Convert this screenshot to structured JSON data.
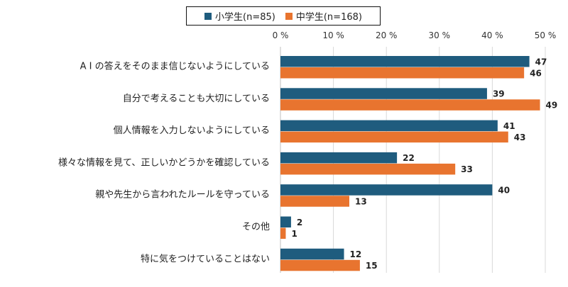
{
  "chart_data": {
    "type": "bar",
    "orientation": "horizontal",
    "categories": [
      "A I の答えをそのまま信じないようにしている",
      "自分で考えることも大切にしている",
      "個人情報を入力しないようにしている",
      "様々な情報を見て、正しいかどうかを確認している",
      "親や先生から言われたルールを守っている",
      "その他",
      "特に気をつけていることはない"
    ],
    "series": [
      {
        "name": "小学生(n=85)",
        "color": "#1f5c7e",
        "values": [
          47,
          39,
          41,
          22,
          40,
          2,
          12
        ]
      },
      {
        "name": "中学生(n=168)",
        "color": "#e8742f",
        "values": [
          46,
          49,
          43,
          33,
          13,
          1,
          15
        ]
      }
    ],
    "xlim": [
      0,
      50
    ],
    "xticks": [
      "0 %",
      "10 %",
      "20 %",
      "30 %",
      "40 %",
      "50 %"
    ],
    "xaxis_position": "top",
    "grid": true,
    "legend_position": "top",
    "data_labels": true
  }
}
